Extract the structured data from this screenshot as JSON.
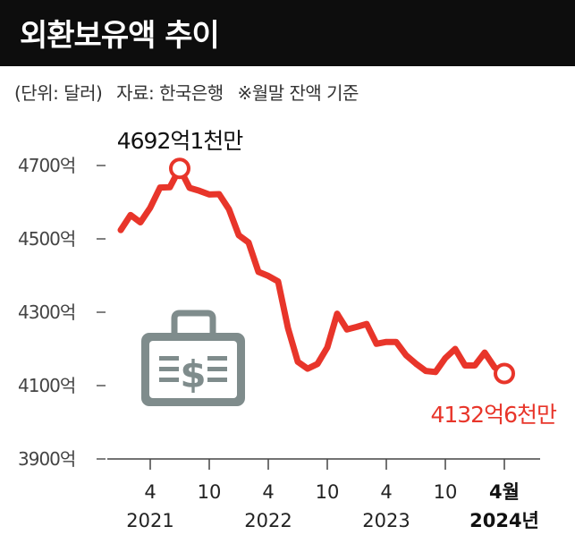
{
  "header": {
    "title": "외환보유액 추이",
    "unit_note": "(단위: 달러)",
    "source_note": "자료: 한국은행",
    "basis_note": "※월말 잔액 기준"
  },
  "colors": {
    "accent": "#e8352a",
    "title_bg": "#0d0d0d",
    "icon": "#7f8c8c"
  },
  "icon": "briefcase-dollar-icon",
  "chart_data": {
    "type": "line",
    "title": "외환보유액 추이",
    "ylim": [
      3900,
      4700
    ],
    "y_ticks": [
      {
        "value": 3900,
        "label": "3900억"
      },
      {
        "value": 4100,
        "label": "4100억"
      },
      {
        "value": 4300,
        "label": "4300억"
      },
      {
        "value": 4500,
        "label": "4500억"
      },
      {
        "value": 4700,
        "label": "4700억"
      }
    ],
    "x_ticks": [
      {
        "month_index": 3,
        "label": "4",
        "year": "2021",
        "bold": false
      },
      {
        "month_index": 9,
        "label": "10",
        "year": "",
        "bold": false
      },
      {
        "month_index": 15,
        "label": "4",
        "year": "2022",
        "bold": false
      },
      {
        "month_index": 21,
        "label": "10",
        "year": "",
        "bold": false
      },
      {
        "month_index": 27,
        "label": "4",
        "year": "2023",
        "bold": false
      },
      {
        "month_index": 33,
        "label": "10",
        "year": "",
        "bold": false
      },
      {
        "month_index": 39,
        "label": "4월",
        "year": "2024년",
        "bold": true
      }
    ],
    "series": [
      {
        "values": [
          4524,
          4565,
          4545,
          4585,
          4640,
          4641,
          4692,
          4639,
          4631,
          4621,
          4622,
          4581,
          4510,
          4490,
          4410,
          4399,
          4384,
          4257,
          4165,
          4146,
          4159,
          4204,
          4296,
          4253,
          4260,
          4268,
          4214,
          4219,
          4219,
          4183,
          4160,
          4140,
          4137,
          4175,
          4200,
          4155,
          4155,
          4190,
          4150,
          4133
        ]
      }
    ],
    "annotations": [
      {
        "month_index": 6,
        "value": 4692,
        "text": "4692억1천만"
      },
      {
        "month_index": 39,
        "value": 4133,
        "text": "4132억6천만"
      }
    ]
  }
}
